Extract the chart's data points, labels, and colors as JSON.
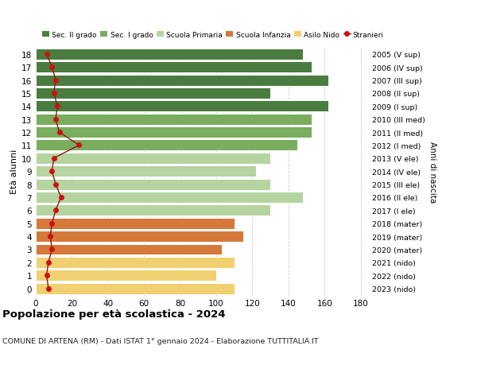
{
  "ages": [
    18,
    17,
    16,
    15,
    14,
    13,
    12,
    11,
    10,
    9,
    8,
    7,
    6,
    5,
    4,
    3,
    2,
    1,
    0
  ],
  "bar_values": [
    148,
    153,
    162,
    130,
    162,
    153,
    153,
    145,
    130,
    122,
    130,
    148,
    130,
    110,
    115,
    103,
    110,
    100,
    110
  ],
  "stranieri": [
    6,
    9,
    11,
    10,
    12,
    11,
    13,
    24,
    10,
    9,
    11,
    14,
    11,
    9,
    8,
    9,
    7,
    6,
    7
  ],
  "right_labels": [
    "2005 (V sup)",
    "2006 (IV sup)",
    "2007 (III sup)",
    "2008 (II sup)",
    "2009 (I sup)",
    "2010 (III med)",
    "2011 (II med)",
    "2012 (I med)",
    "2013 (V ele)",
    "2014 (IV ele)",
    "2015 (III ele)",
    "2016 (II ele)",
    "2017 (I ele)",
    "2018 (mater)",
    "2019 (mater)",
    "2020 (mater)",
    "2021 (nido)",
    "2022 (nido)",
    "2023 (nido)"
  ],
  "color_sec2": "#4a7c3f",
  "color_sec1": "#7aad5e",
  "color_primaria": "#b5d4a0",
  "color_infanzia": "#d4793a",
  "color_nido": "#f0d070",
  "color_stranieri_line": "#8b1a1a",
  "color_stranieri_dot": "#cc1111",
  "ages_sec2": [
    14,
    15,
    16,
    17,
    18
  ],
  "ages_sec1": [
    11,
    12,
    13
  ],
  "ages_primaria": [
    6,
    7,
    8,
    9,
    10
  ],
  "ages_infanzia": [
    3,
    4,
    5
  ],
  "ages_nido": [
    0,
    1,
    2
  ],
  "legend_labels": [
    "Sec. II grado",
    "Sec. I grado",
    "Scuola Primaria",
    "Scuola Infanzia",
    "Asilo Nido",
    "Stranieri"
  ],
  "ylabel_left": "Età alunni",
  "ylabel_right": "Anni di nascita",
  "title": "Popolazione per età scolastica - 2024",
  "subtitle": "COMUNE DI ARTENA (RM) - Dati ISTAT 1° gennaio 2024 - Elaborazione TUTTITALIA.IT",
  "xlim": [
    0,
    185
  ],
  "xticks": [
    0,
    20,
    40,
    60,
    80,
    100,
    120,
    140,
    160,
    180
  ],
  "ylim": [
    -0.55,
    18.55
  ],
  "background_color": "#ffffff",
  "grid_color": "#cccccc"
}
